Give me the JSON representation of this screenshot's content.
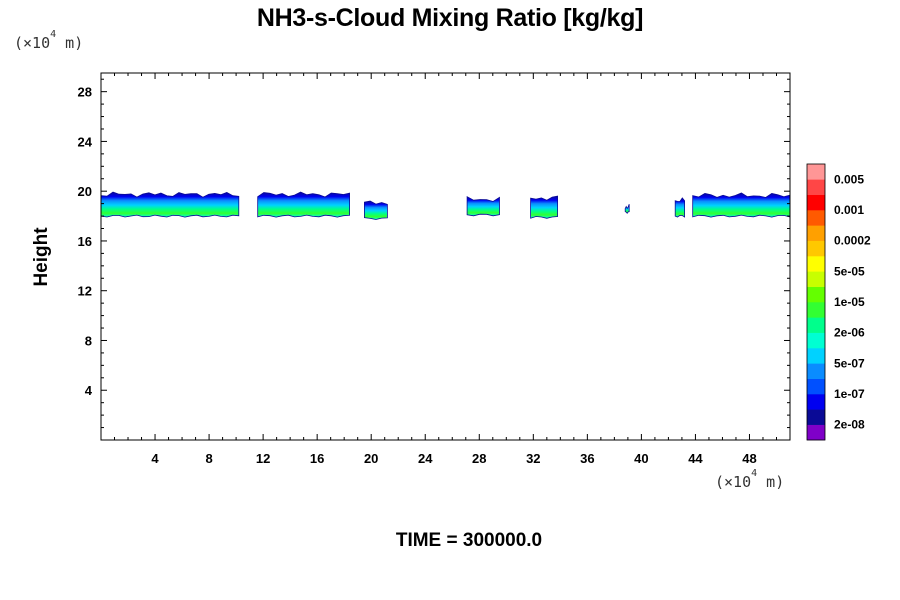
{
  "chart_data": {
    "type": "heatmap",
    "title": "NH3-s-Cloud Mixing Ratio [kg/kg]",
    "ylabel": "Height",
    "xlabel": "",
    "x_unit": {
      "prefix": "(×10",
      "exponent": "4",
      "suffix": " m)"
    },
    "y_unit": {
      "prefix": "(×10",
      "exponent": "4",
      "suffix": " m)"
    },
    "xlim": [
      0,
      51
    ],
    "ylim": [
      0,
      29.5
    ],
    "x_ticks": [
      4,
      8,
      12,
      16,
      20,
      24,
      28,
      32,
      36,
      40,
      44,
      48
    ],
    "y_ticks": [
      4,
      8,
      12,
      16,
      20,
      24,
      28
    ],
    "time_label": "TIME = 300000.0",
    "colorbar": {
      "colors": [
        "#7f00c8",
        "#0a0a96",
        "#0000f0",
        "#0050ff",
        "#0a8cff",
        "#00d2ff",
        "#00ffd2",
        "#00ff8c",
        "#32ff32",
        "#64ff00",
        "#c8ff00",
        "#ffff00",
        "#ffc800",
        "#ffa000",
        "#ff5a00",
        "#ff0000",
        "#ff4646",
        "#ff9696"
      ],
      "labels": [
        "2e-08",
        "1e-07",
        "5e-07",
        "2e-06",
        "1e-05",
        "5e-05",
        "0.0002",
        "0.001",
        "0.005"
      ]
    },
    "cloud_patches": [
      {
        "x": [
          0,
          10.2
        ],
        "y": [
          18.0,
          19.9
        ]
      },
      {
        "x": [
          11.6,
          18.4
        ],
        "y": [
          18.0,
          19.9
        ]
      },
      {
        "x": [
          19.5,
          21.2
        ],
        "y": [
          17.8,
          19.2
        ]
      },
      {
        "x": [
          27.1,
          29.5
        ],
        "y": [
          18.1,
          19.5
        ]
      },
      {
        "x": [
          31.8,
          33.8
        ],
        "y": [
          17.9,
          19.6
        ]
      },
      {
        "x": [
          38.8,
          39.1
        ],
        "y": [
          18.3,
          18.9
        ]
      },
      {
        "x": [
          42.5,
          43.2
        ],
        "y": [
          18.0,
          19.4
        ]
      },
      {
        "x": [
          43.8,
          51
        ],
        "y": [
          18.0,
          19.8
        ]
      }
    ]
  }
}
